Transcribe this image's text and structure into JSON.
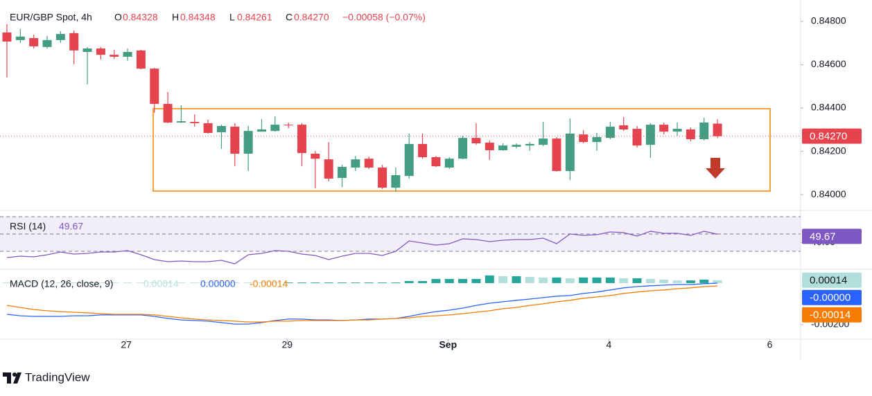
{
  "header": {
    "symbol": "EUR/GBP Spot, 4h",
    "o_label": "O",
    "o": "0.84328",
    "h_label": "H",
    "h": "0.84348",
    "l_label": "L",
    "l": "0.84261",
    "c_label": "C",
    "c": "0.84270",
    "change": "−0.00058 (−0.07%)"
  },
  "brand": "TradingView",
  "chart_data": [
    {
      "type": "candlestick",
      "up_color": "#429d83",
      "down_color": "#e5444f",
      "xlim": [
        -0.517,
        59.2
      ],
      "xticks": [
        {
          "value": 8.9,
          "label": "27"
        },
        {
          "value": 20.9,
          "label": "29"
        },
        {
          "value": 32.9,
          "label": "Sep"
        },
        {
          "value": 44.9,
          "label": "4"
        },
        {
          "value": 56.9,
          "label": "6"
        }
      ],
      "ylim": [
        0.8393,
        0.84883
      ],
      "yticks": [
        {
          "value": 0.84,
          "label": "0.84000"
        },
        {
          "value": 0.842,
          "label": "0.84200"
        },
        {
          "value": 0.844,
          "label": "0.84400"
        },
        {
          "value": 0.846,
          "label": "0.84600"
        },
        {
          "value": 0.848,
          "label": "0.84800"
        }
      ],
      "open": [
        0.84749,
        0.84714,
        0.84723,
        0.84682,
        0.84714,
        0.84746,
        0.84659,
        0.84675,
        0.84646,
        0.84637,
        0.84666,
        0.84582,
        0.84419,
        0.84333,
        0.84336,
        0.8433,
        0.84288,
        0.84314,
        0.84189,
        0.84291,
        0.84294,
        0.84323,
        0.84323,
        0.84189,
        0.84163,
        0.84077,
        0.84125,
        0.84166,
        0.84125,
        0.84032,
        0.84086,
        0.84234,
        0.84173,
        0.84125,
        0.84166,
        0.84262,
        0.8424,
        0.84205,
        0.84221,
        0.84227,
        0.8423,
        0.84259,
        0.84109,
        0.84278,
        0.84243,
        0.84262,
        0.8432,
        0.84304,
        0.8423,
        0.84323,
        0.84291,
        0.84301,
        0.84256,
        0.84328
      ],
      "high": [
        0.84787,
        0.84765,
        0.84739,
        0.84733,
        0.84755,
        0.84758,
        0.84682,
        0.84682,
        0.84669,
        0.84675,
        0.84669,
        0.84586,
        0.84474,
        0.84413,
        0.84371,
        0.84346,
        0.84323,
        0.8433,
        0.84317,
        0.84349,
        0.84362,
        0.84333,
        0.8433,
        0.84202,
        0.84243,
        0.84138,
        0.84179,
        0.84176,
        0.84138,
        0.84125,
        0.84282,
        0.84282,
        0.84179,
        0.84173,
        0.84272,
        0.8433,
        0.8425,
        0.84237,
        0.84237,
        0.84243,
        0.84336,
        0.84266,
        0.84352,
        0.84298,
        0.84285,
        0.84336,
        0.84358,
        0.84317,
        0.8433,
        0.84333,
        0.84333,
        0.8431,
        0.84355,
        0.84348
      ],
      "low": [
        0.84541,
        0.84701,
        0.84675,
        0.84675,
        0.84701,
        0.84602,
        0.84509,
        0.84624,
        0.84627,
        0.84618,
        0.84579,
        0.84378,
        0.8433,
        0.8433,
        0.84314,
        0.84282,
        0.84211,
        0.84131,
        0.84109,
        0.84291,
        0.84291,
        0.84307,
        0.84131,
        0.84029,
        0.84061,
        0.84035,
        0.84109,
        0.84118,
        0.84026,
        0.84013,
        0.84074,
        0.84166,
        0.84128,
        0.84118,
        0.84163,
        0.8423,
        0.8416,
        0.84202,
        0.84214,
        0.84202,
        0.84224,
        0.84106,
        0.84067,
        0.84237,
        0.84202,
        0.84256,
        0.84294,
        0.84218,
        0.8417,
        0.84278,
        0.84272,
        0.84246,
        0.8425,
        0.84261
      ],
      "close": [
        0.84707,
        0.8473,
        0.84685,
        0.84714,
        0.84742,
        0.84666,
        0.84675,
        0.84646,
        0.84637,
        0.84659,
        0.84582,
        0.84419,
        0.84333,
        0.84339,
        0.8433,
        0.84285,
        0.84317,
        0.84189,
        0.84294,
        0.84301,
        0.84323,
        0.8432,
        0.84192,
        0.84166,
        0.84074,
        0.84128,
        0.84163,
        0.84125,
        0.84032,
        0.8409,
        0.84234,
        0.84173,
        0.84131,
        0.84166,
        0.84262,
        0.84237,
        0.84205,
        0.84227,
        0.8423,
        0.84234,
        0.84259,
        0.84109,
        0.84282,
        0.84243,
        0.84266,
        0.84314,
        0.84301,
        0.84227,
        0.84323,
        0.84291,
        0.84304,
        0.84256,
        0.84333,
        0.8427
      ]
    },
    {
      "type": "line",
      "title": "RSI (14)",
      "color": "#7e57c2",
      "ylim": [
        10,
        76.4
      ],
      "yticks": [
        {
          "value": 40,
          "label": "40.00"
        }
      ],
      "levels": [
        70,
        50,
        30
      ],
      "values": [
        22.8,
        24.4,
        23.6,
        26,
        29.2,
        26.8,
        27.6,
        29.2,
        29.2,
        30.8,
        26,
        20.4,
        18,
        18.8,
        18,
        18,
        19.6,
        15.6,
        26,
        27.6,
        30.8,
        30,
        26.8,
        25.2,
        20.4,
        24.4,
        27.6,
        27.6,
        25.2,
        30,
        42,
        39.6,
        37.2,
        38.8,
        44.4,
        43.6,
        41.2,
        42.8,
        43.6,
        43.6,
        45.2,
        38.8,
        50,
        48.4,
        49.2,
        52.4,
        51.6,
        47.6,
        53.2,
        50.8,
        50.8,
        48.4,
        53.2,
        49.67
      ]
    },
    {
      "type": "macd",
      "title": "MACD (12, 26, close, 9)",
      "ylim": [
        -0.0027,
        0.00063
      ],
      "yticks": [
        {
          "value": -0.002,
          "label": "-0.00200"
        }
      ],
      "histogram": {
        "up_color": "#26a69a",
        "down_color": "#b2dfdb",
        "values": [
          1e-05,
          1e-05,
          1e-05,
          1e-05,
          1e-05,
          1e-05,
          1e-05,
          1e-05,
          1e-05,
          1e-05,
          1e-05,
          1e-05,
          1e-05,
          1e-05,
          1e-05,
          1e-05,
          1e-05,
          1e-05,
          1e-05,
          1e-05,
          1e-05,
          3e-05,
          3e-05,
          3e-05,
          3e-05,
          3e-05,
          3e-05,
          3e-05,
          3e-05,
          3e-05,
          0.0001,
          0.0001,
          0.0002,
          0.0002,
          0.0002,
          0.0002,
          0.00037,
          0.00033,
          0.00033,
          0.0003,
          0.00027,
          0.00027,
          0.00023,
          0.00027,
          0.00027,
          0.00027,
          0.00023,
          0.00023,
          0.0002,
          0.00017,
          0.00013,
          0.00013,
          0.00017,
          0.00014
        ]
      },
      "macd": {
        "color": "#2962ff",
        "legend_label": "0.00000",
        "axis_label": "-0.00000",
        "values": [
          -0.0015,
          -0.00157,
          -0.0016,
          -0.0016,
          -0.0016,
          -0.00157,
          -0.00157,
          -0.00153,
          -0.00153,
          -0.00153,
          -0.00153,
          -0.0016,
          -0.0017,
          -0.00177,
          -0.0018,
          -0.00183,
          -0.0019,
          -0.00197,
          -0.00197,
          -0.0019,
          -0.0018,
          -0.00173,
          -0.00173,
          -0.00177,
          -0.00177,
          -0.0018,
          -0.00177,
          -0.00173,
          -0.00173,
          -0.0017,
          -0.0016,
          -0.00147,
          -0.00137,
          -0.0013,
          -0.0012,
          -0.00107,
          -0.00097,
          -0.0009,
          -0.00083,
          -0.00077,
          -0.0007,
          -0.00063,
          -0.0006,
          -0.0005,
          -0.00043,
          -0.00033,
          -0.00023,
          -0.00017,
          -0.00013,
          -0.0001,
          -7e-05,
          -7e-05,
          -3e-05,
          -3e-06
        ]
      },
      "signal": {
        "color": "#f57c00",
        "values": [
          -0.00107,
          -0.00117,
          -0.00127,
          -0.00133,
          -0.00137,
          -0.0014,
          -0.00143,
          -0.00147,
          -0.0015,
          -0.0015,
          -0.0015,
          -0.00153,
          -0.0016,
          -0.00167,
          -0.00173,
          -0.00177,
          -0.0018,
          -0.00183,
          -0.00187,
          -0.00187,
          -0.00183,
          -0.00183,
          -0.0018,
          -0.0018,
          -0.0018,
          -0.0018,
          -0.00177,
          -0.00177,
          -0.00173,
          -0.0017,
          -0.00167,
          -0.0016,
          -0.00157,
          -0.00153,
          -0.00147,
          -0.0014,
          -0.00133,
          -0.00123,
          -0.00117,
          -0.00107,
          -0.001,
          -0.0009,
          -0.00083,
          -0.00073,
          -0.00067,
          -0.0006,
          -0.0005,
          -0.00043,
          -0.00037,
          -0.00033,
          -0.00027,
          -0.00023,
          -0.00017,
          -0.00014
        ]
      }
    }
  ]
}
